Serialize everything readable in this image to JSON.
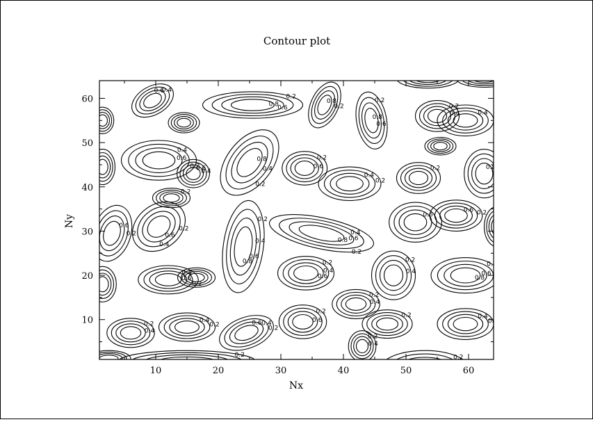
{
  "chart_data": {
    "type": "contour",
    "title": "Contour plot",
    "xlabel": "Nx",
    "ylabel": "Ny",
    "xlim": [
      1,
      64
    ],
    "ylim": [
      1,
      64
    ],
    "xticks": [
      10,
      20,
      30,
      40,
      50,
      60
    ],
    "yticks": [
      10,
      20,
      30,
      40,
      50,
      60
    ],
    "levels": [
      0.2,
      0.4,
      0.6,
      0.8
    ],
    "grid": false,
    "line_color": "#000000",
    "features": [
      {
        "type": "ellipse",
        "cx": 9.5,
        "cy": 59.5,
        "rx": 3.6,
        "ry": 3.2,
        "rot": -30,
        "labels": [
          "0.6",
          "0.4"
        ]
      },
      {
        "type": "ellipse",
        "cx": 14.5,
        "cy": 54.5,
        "rx": 2.5,
        "ry": 2.3,
        "rot": 0,
        "labels": []
      },
      {
        "type": "ellipse",
        "cx": 25.5,
        "cy": 58.5,
        "rx": 8.0,
        "ry": 3.0,
        "rot": 0,
        "labels": [
          "0.2",
          "0.8",
          "0.6"
        ]
      },
      {
        "type": "ellipse",
        "cx": 37.0,
        "cy": 58.5,
        "rx": 2.2,
        "ry": 5.5,
        "rot": 25,
        "labels": [
          "0.8",
          "0.2"
        ]
      },
      {
        "type": "ellipse",
        "cx": 44.5,
        "cy": 55.0,
        "rx": 2.4,
        "ry": 6.5,
        "rot": -10,
        "labels": [
          "0.2",
          "0.8",
          "0.6"
        ]
      },
      {
        "type": "ellipse",
        "cx": 55.0,
        "cy": 56.0,
        "rx": 3.5,
        "ry": 3.5,
        "rot": 0,
        "labels": [
          "0.2",
          "0.4"
        ]
      },
      {
        "type": "ellipse",
        "cx": 59.5,
        "cy": 55.0,
        "rx": 4.5,
        "ry": 3.5,
        "rot": 0,
        "labels": [
          "0.4"
        ]
      },
      {
        "type": "ellipse",
        "cx": 55.5,
        "cy": 49.2,
        "rx": 2.5,
        "ry": 2.0,
        "rot": 0,
        "labels": []
      },
      {
        "type": "ellipse",
        "cx": 10.5,
        "cy": 46.0,
        "rx": 6.0,
        "ry": 4.5,
        "rot": 0,
        "labels": [
          "0.4",
          "0.6",
          "0.2"
        ]
      },
      {
        "type": "ellipse",
        "cx": 16.0,
        "cy": 43.0,
        "rx": 2.6,
        "ry": 3.2,
        "rot": 0,
        "labels": [
          "0.6",
          "0.4"
        ]
      },
      {
        "type": "ellipse",
        "cx": 12.5,
        "cy": 37.5,
        "rx": 3.0,
        "ry": 2.2,
        "rot": 0,
        "labels": [
          "0.2"
        ]
      },
      {
        "type": "ellipse",
        "cx": 25.0,
        "cy": 45.5,
        "rx": 3.6,
        "ry": 8.5,
        "rot": 38,
        "labels": [
          "0.8",
          "0.4",
          "0.2"
        ]
      },
      {
        "type": "ellipse",
        "cx": 33.8,
        "cy": 44.2,
        "rx": 3.6,
        "ry": 3.8,
        "rot": 0,
        "labels": [
          "0.2",
          "0.6"
        ]
      },
      {
        "type": "ellipse",
        "cx": 41.0,
        "cy": 40.7,
        "rx": 5.0,
        "ry": 3.8,
        "rot": 0,
        "labels": [
          "0.4",
          "0.2"
        ]
      },
      {
        "type": "ellipse",
        "cx": 52.0,
        "cy": 42.0,
        "rx": 3.5,
        "ry": 3.5,
        "rot": 0,
        "labels": [
          "0.2"
        ]
      },
      {
        "type": "ellipse",
        "cx": 62.5,
        "cy": 43.0,
        "rx": 3.2,
        "ry": 5.5,
        "rot": 0,
        "labels": [
          "0.8",
          "0.6"
        ]
      },
      {
        "type": "ellipse",
        "cx": 1.5,
        "cy": 44.5,
        "rx": 2.0,
        "ry": 4.0,
        "rot": 0,
        "labels": []
      },
      {
        "type": "ellipse",
        "cx": 1.5,
        "cy": 55.0,
        "rx": 1.8,
        "ry": 3.0,
        "rot": 0,
        "labels": []
      },
      {
        "type": "ellipse",
        "cx": 10.5,
        "cy": 31.0,
        "rx": 3.5,
        "ry": 6.5,
        "rot": 52,
        "labels": [
          "0.2",
          "0.6",
          "0.4"
        ]
      },
      {
        "type": "ellipse",
        "cx": 3.0,
        "cy": 29.5,
        "rx": 3.0,
        "ry": 6.5,
        "rot": 18,
        "labels": [
          "0.6",
          "0.2"
        ]
      },
      {
        "type": "ellipse",
        "cx": 24.0,
        "cy": 26.5,
        "rx": 3.2,
        "ry": 10.5,
        "rot": 8,
        "labels": [
          "0.2",
          "0.4",
          "0.6",
          "0.8"
        ]
      },
      {
        "type": "ellipse",
        "cx": 36.5,
        "cy": 29.5,
        "rx": 8.5,
        "ry": 3.5,
        "rot": 12,
        "labels": [
          "0.4",
          "0.6",
          "0.8",
          "0.2"
        ]
      },
      {
        "type": "ellipse",
        "cx": 51.5,
        "cy": 32.0,
        "rx": 4.2,
        "ry": 4.5,
        "rot": 0,
        "labels": [
          "0.6"
        ]
      },
      {
        "type": "ellipse",
        "cx": 58.0,
        "cy": 33.5,
        "rx": 4.2,
        "ry": 3.5,
        "rot": 0,
        "labels": [
          "0.6",
          "0.2"
        ]
      },
      {
        "type": "ellipse",
        "cx": 34.0,
        "cy": 20.5,
        "rx": 4.5,
        "ry": 3.8,
        "rot": 0,
        "labels": [
          "0.2",
          "0.4",
          "0.6"
        ]
      },
      {
        "type": "ellipse",
        "cx": 48.0,
        "cy": 20.0,
        "rx": 3.5,
        "ry": 5.5,
        "rot": 0,
        "labels": [
          "0.2",
          "0.4"
        ]
      },
      {
        "type": "ellipse",
        "cx": 59.5,
        "cy": 20.0,
        "rx": 5.5,
        "ry": 4.0,
        "rot": 0,
        "labels": [
          "0.2",
          "0.6",
          "0.8"
        ]
      },
      {
        "type": "ellipse",
        "cx": 12.0,
        "cy": 19.0,
        "rx": 4.8,
        "ry": 3.2,
        "rot": 0,
        "labels": [
          "0.4",
          "0.6",
          "0.2"
        ]
      },
      {
        "type": "ellipse",
        "cx": 16.5,
        "cy": 19.5,
        "rx": 3.0,
        "ry": 2.2,
        "rot": 0,
        "labels": []
      },
      {
        "type": "ellipse",
        "cx": 1.5,
        "cy": 18.0,
        "rx": 2.2,
        "ry": 4.0,
        "rot": 0,
        "labels": []
      },
      {
        "type": "ellipse",
        "cx": 42.0,
        "cy": 13.5,
        "rx": 3.8,
        "ry": 3.3,
        "rot": 0,
        "labels": [
          "0.2",
          "0.4"
        ]
      },
      {
        "type": "ellipse",
        "cx": 6.0,
        "cy": 7.0,
        "rx": 3.8,
        "ry": 3.3,
        "rot": 0,
        "labels": [
          "0.2",
          "0.4"
        ]
      },
      {
        "type": "ellipse",
        "cx": 15.0,
        "cy": 8.3,
        "rx": 4.5,
        "ry": 3.2,
        "rot": 0,
        "labels": [
          "0.4",
          "0.2"
        ]
      },
      {
        "type": "ellipse",
        "cx": 24.5,
        "cy": 7.0,
        "rx": 4.5,
        "ry": 3.5,
        "rot": -20,
        "labels": [
          "0.6",
          "0.4",
          "0.2"
        ]
      },
      {
        "type": "ellipse",
        "cx": 33.5,
        "cy": 9.5,
        "rx": 3.8,
        "ry": 3.8,
        "rot": 0,
        "labels": [
          "0.2",
          "0.6"
        ]
      },
      {
        "type": "ellipse",
        "cx": 47.0,
        "cy": 9.0,
        "rx": 4.0,
        "ry": 3.2,
        "rot": 0,
        "labels": [
          "0.2"
        ]
      },
      {
        "type": "ellipse",
        "cx": 59.5,
        "cy": 9.0,
        "rx": 4.5,
        "ry": 3.5,
        "rot": 0,
        "labels": [
          "0.4",
          "0.2"
        ]
      },
      {
        "type": "ellipse",
        "cx": 43.0,
        "cy": 4.0,
        "rx": 2.2,
        "ry": 3.5,
        "rot": 0,
        "labels": [
          "0.2",
          "0.4"
        ]
      },
      {
        "type": "ellipse",
        "cx": 64.5,
        "cy": 31.0,
        "rx": 2.0,
        "ry": 4.5,
        "rot": 0,
        "labels": []
      },
      {
        "type": "ellipse",
        "cx": 15.0,
        "cy": 0.5,
        "rx": 11.0,
        "ry": 2.5,
        "rot": 0,
        "labels": [
          "0.2"
        ]
      },
      {
        "type": "ellipse",
        "cx": 53.0,
        "cy": -1.0,
        "rx": 7.0,
        "ry": 4.0,
        "rot": 0,
        "labels": [
          "0.2"
        ]
      },
      {
        "type": "ellipse",
        "cx": 53.5,
        "cy": 64.5,
        "rx": 5.0,
        "ry": 2.2,
        "rot": 0,
        "labels": [
          "0.2"
        ]
      },
      {
        "type": "ellipse",
        "cx": 62.5,
        "cy": 64.5,
        "rx": 4.5,
        "ry": 2.0,
        "rot": 0,
        "labels": []
      },
      {
        "type": "ellipse",
        "cx": 2.5,
        "cy": 1.2,
        "rx": 3.5,
        "ry": 1.8,
        "rot": 0,
        "labels": []
      }
    ]
  }
}
